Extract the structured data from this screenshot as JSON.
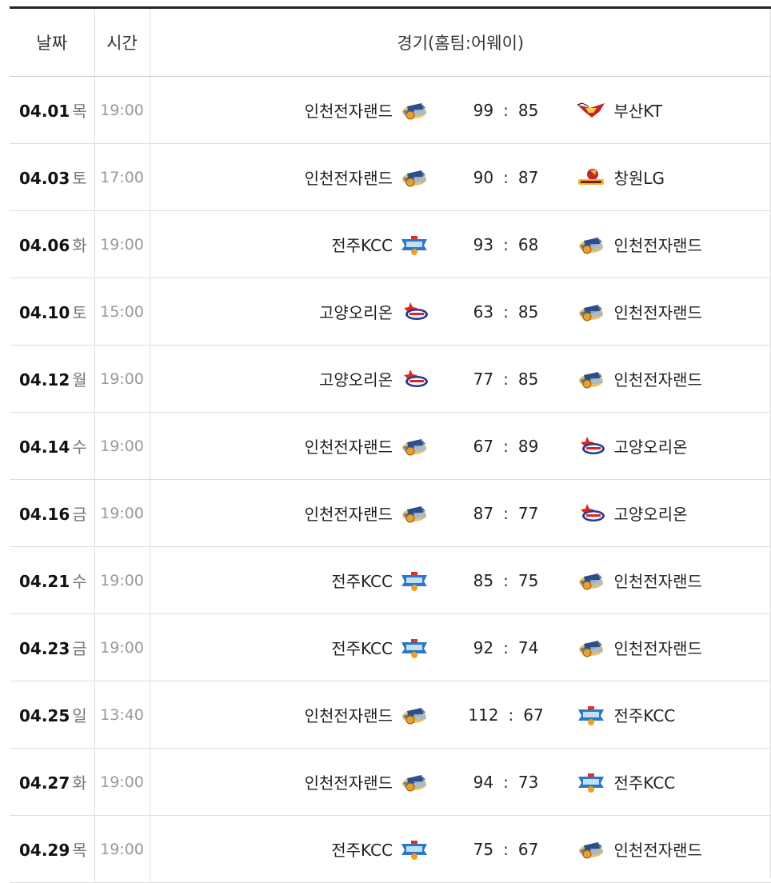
{
  "header": {
    "date_label": "날짜",
    "time_label": "시간",
    "match_label": "경기(홈팀:어웨이)"
  },
  "team_logos": {
    "인천전자랜드": "elephants-logo-icon",
    "부산KT": "sonicboom-logo-icon",
    "창원LG": "sakers-logo-icon",
    "전주KCC": "egis-logo-icon",
    "고양오리온": "orions-logo-icon"
  },
  "games": [
    {
      "md": "04.01",
      "dow": "목",
      "time": "19:00",
      "home": "인천전자랜드",
      "hs": "99",
      "sep": ":",
      "as": "85",
      "away": "부산KT"
    },
    {
      "md": "04.03",
      "dow": "토",
      "time": "17:00",
      "home": "인천전자랜드",
      "hs": "90",
      "sep": ":",
      "as": "87",
      "away": "창원LG"
    },
    {
      "md": "04.06",
      "dow": "화",
      "time": "19:00",
      "home": "전주KCC",
      "hs": "93",
      "sep": ":",
      "as": "68",
      "away": "인천전자랜드"
    },
    {
      "md": "04.10",
      "dow": "토",
      "time": "15:00",
      "home": "고양오리온",
      "hs": "63",
      "sep": ":",
      "as": "85",
      "away": "인천전자랜드"
    },
    {
      "md": "04.12",
      "dow": "월",
      "time": "19:00",
      "home": "고양오리온",
      "hs": "77",
      "sep": ":",
      "as": "85",
      "away": "인천전자랜드"
    },
    {
      "md": "04.14",
      "dow": "수",
      "time": "19:00",
      "home": "인천전자랜드",
      "hs": "67",
      "sep": ":",
      "as": "89",
      "away": "고양오리온"
    },
    {
      "md": "04.16",
      "dow": "금",
      "time": "19:00",
      "home": "인천전자랜드",
      "hs": "87",
      "sep": ":",
      "as": "77",
      "away": "고양오리온"
    },
    {
      "md": "04.21",
      "dow": "수",
      "time": "19:00",
      "home": "전주KCC",
      "hs": "85",
      "sep": ":",
      "as": "75",
      "away": "인천전자랜드"
    },
    {
      "md": "04.23",
      "dow": "금",
      "time": "19:00",
      "home": "전주KCC",
      "hs": "92",
      "sep": ":",
      "as": "74",
      "away": "인천전자랜드"
    },
    {
      "md": "04.25",
      "dow": "일",
      "time": "13:40",
      "home": "인천전자랜드",
      "hs": "112",
      "sep": ":",
      "as": "67",
      "away": "전주KCC"
    },
    {
      "md": "04.27",
      "dow": "화",
      "time": "19:00",
      "home": "인천전자랜드",
      "hs": "94",
      "sep": ":",
      "as": "73",
      "away": "전주KCC"
    },
    {
      "md": "04.29",
      "dow": "목",
      "time": "19:00",
      "home": "전주KCC",
      "hs": "75",
      "sep": ":",
      "as": "67",
      "away": "인천전자랜드"
    }
  ]
}
